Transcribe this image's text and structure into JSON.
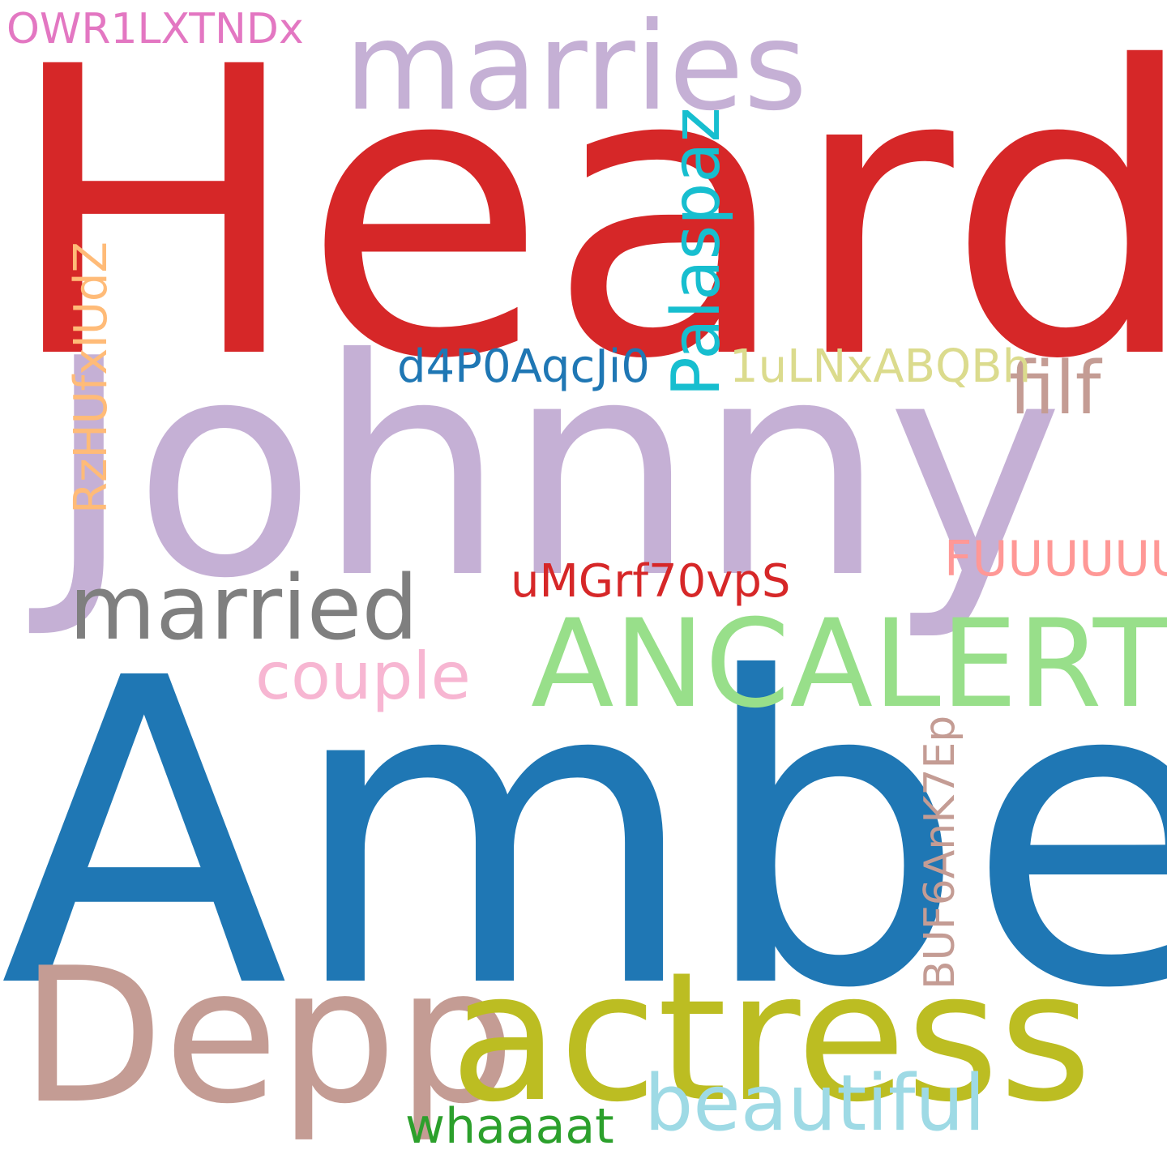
{
  "words": [
    {
      "text": "Heard",
      "color": "#d62728"
    },
    {
      "text": "Johnny",
      "color": "#c5b0d5"
    },
    {
      "text": "marries",
      "color": "#c5b0d5"
    },
    {
      "text": "Amber",
      "color": "#1f77b4"
    },
    {
      "text": "Depp",
      "color": "#c49c94"
    },
    {
      "text": "actress",
      "color": "#bcbd22"
    },
    {
      "text": "ANCALERTS",
      "color": "#98df8a"
    },
    {
      "text": "married",
      "color": "#7f7f7f"
    },
    {
      "text": "couple",
      "color": "#f7b6d2"
    },
    {
      "text": "beautiful",
      "color": "#9edae5"
    },
    {
      "text": "whaaaat",
      "color": "#2ca02c"
    },
    {
      "text": "filf",
      "color": "#c49c94"
    },
    {
      "text": "FUUUUUU",
      "color": "#ff9896"
    },
    {
      "text": "uMGrf70vpS",
      "color": "#d62728"
    },
    {
      "text": "d4P0AqcJi0",
      "color": "#1f77b4"
    },
    {
      "text": "1uLNxABQBh",
      "color": "#dbdb8d"
    },
    {
      "text": "OWR1LXTNDx",
      "color": "#e377c2"
    },
    {
      "text": "Palaspaz",
      "color": "#17becf",
      "rotated": true
    },
    {
      "text": "RzHUfxIUdZ",
      "color": "#ffbb78",
      "rotated": true
    },
    {
      "text": "BUF6AnK7Ep",
      "color": "#c49c94",
      "rotated": true
    }
  ]
}
